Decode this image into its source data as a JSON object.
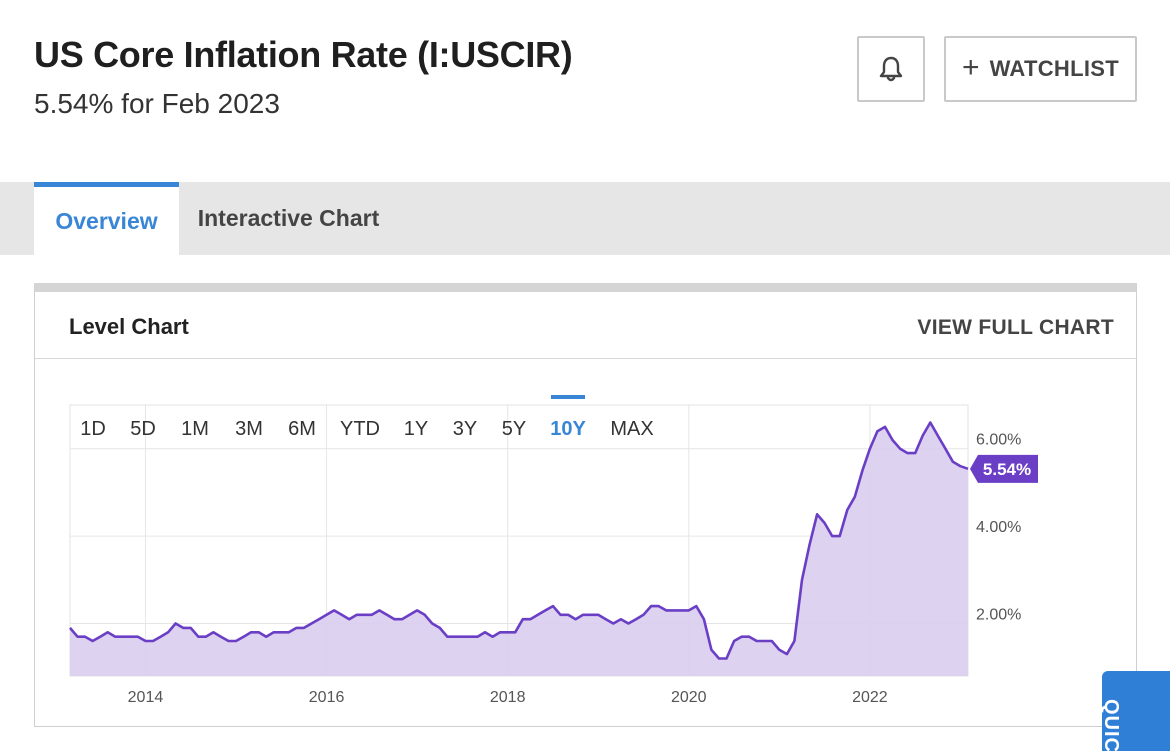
{
  "header": {
    "title": "US Core Inflation Rate (I:USCIR)",
    "subtitle": "5.54% for Feb 2023"
  },
  "actions": {
    "alert_icon": "bell-icon",
    "watchlist_icon": "plus-icon",
    "watchlist_label": "WATCHLIST"
  },
  "tabs": [
    {
      "label": "Overview",
      "active": true
    },
    {
      "label": "Interactive Chart",
      "active": false
    }
  ],
  "card": {
    "title": "Level Chart",
    "link_label": "VIEW FULL CHART"
  },
  "range_buttons": [
    {
      "label": "1D",
      "active": false
    },
    {
      "label": "5D",
      "active": false
    },
    {
      "label": "1M",
      "active": false
    },
    {
      "label": "3M",
      "active": false
    },
    {
      "label": "6M",
      "active": false
    },
    {
      "label": "YTD",
      "active": false
    },
    {
      "label": "1Y",
      "active": false
    },
    {
      "label": "3Y",
      "active": false
    },
    {
      "label": "5Y",
      "active": false
    },
    {
      "label": "10Y",
      "active": true
    },
    {
      "label": "MAX",
      "active": false
    }
  ],
  "colors": {
    "accent": "#3a86d6",
    "line": "#6a3fc6",
    "fill": "#d9cdee",
    "badge": "#6a3fc6"
  },
  "chart_data": {
    "type": "area",
    "title": "",
    "xlabel": "",
    "ylabel": "",
    "x_ticks": [
      "2014",
      "2016",
      "2018",
      "2020",
      "2022"
    ],
    "y_ticks": [
      "2.00%",
      "4.00%",
      "6.00%"
    ],
    "ylim": [
      0.8,
      7.0
    ],
    "grid": true,
    "last_value_label": "5.54%",
    "series": [
      {
        "points": [
          [
            "2013-03",
            1.9
          ],
          [
            "2013-04",
            1.7
          ],
          [
            "2013-05",
            1.7
          ],
          [
            "2013-06",
            1.6
          ],
          [
            "2013-07",
            1.7
          ],
          [
            "2013-08",
            1.8
          ],
          [
            "2013-09",
            1.7
          ],
          [
            "2013-10",
            1.7
          ],
          [
            "2013-11",
            1.7
          ],
          [
            "2013-12",
            1.7
          ],
          [
            "2014-01",
            1.6
          ],
          [
            "2014-02",
            1.6
          ],
          [
            "2014-03",
            1.7
          ],
          [
            "2014-04",
            1.8
          ],
          [
            "2014-05",
            2.0
          ],
          [
            "2014-06",
            1.9
          ],
          [
            "2014-07",
            1.9
          ],
          [
            "2014-08",
            1.7
          ],
          [
            "2014-09",
            1.7
          ],
          [
            "2014-10",
            1.8
          ],
          [
            "2014-11",
            1.7
          ],
          [
            "2014-12",
            1.6
          ],
          [
            "2015-01",
            1.6
          ],
          [
            "2015-02",
            1.7
          ],
          [
            "2015-03",
            1.8
          ],
          [
            "2015-04",
            1.8
          ],
          [
            "2015-05",
            1.7
          ],
          [
            "2015-06",
            1.8
          ],
          [
            "2015-07",
            1.8
          ],
          [
            "2015-08",
            1.8
          ],
          [
            "2015-09",
            1.9
          ],
          [
            "2015-10",
            1.9
          ],
          [
            "2015-11",
            2.0
          ],
          [
            "2015-12",
            2.1
          ],
          [
            "2016-01",
            2.2
          ],
          [
            "2016-02",
            2.3
          ],
          [
            "2016-03",
            2.2
          ],
          [
            "2016-04",
            2.1
          ],
          [
            "2016-05",
            2.2
          ],
          [
            "2016-06",
            2.2
          ],
          [
            "2016-07",
            2.2
          ],
          [
            "2016-08",
            2.3
          ],
          [
            "2016-09",
            2.2
          ],
          [
            "2016-10",
            2.1
          ],
          [
            "2016-11",
            2.1
          ],
          [
            "2016-12",
            2.2
          ],
          [
            "2017-01",
            2.3
          ],
          [
            "2017-02",
            2.2
          ],
          [
            "2017-03",
            2.0
          ],
          [
            "2017-04",
            1.9
          ],
          [
            "2017-05",
            1.7
          ],
          [
            "2017-06",
            1.7
          ],
          [
            "2017-07",
            1.7
          ],
          [
            "2017-08",
            1.7
          ],
          [
            "2017-09",
            1.7
          ],
          [
            "2017-10",
            1.8
          ],
          [
            "2017-11",
            1.7
          ],
          [
            "2017-12",
            1.8
          ],
          [
            "2018-01",
            1.8
          ],
          [
            "2018-02",
            1.8
          ],
          [
            "2018-03",
            2.1
          ],
          [
            "2018-04",
            2.1
          ],
          [
            "2018-05",
            2.2
          ],
          [
            "2018-06",
            2.3
          ],
          [
            "2018-07",
            2.4
          ],
          [
            "2018-08",
            2.2
          ],
          [
            "2018-09",
            2.2
          ],
          [
            "2018-10",
            2.1
          ],
          [
            "2018-11",
            2.2
          ],
          [
            "2018-12",
            2.2
          ],
          [
            "2019-01",
            2.2
          ],
          [
            "2019-02",
            2.1
          ],
          [
            "2019-03",
            2.0
          ],
          [
            "2019-04",
            2.1
          ],
          [
            "2019-05",
            2.0
          ],
          [
            "2019-06",
            2.1
          ],
          [
            "2019-07",
            2.2
          ],
          [
            "2019-08",
            2.4
          ],
          [
            "2019-09",
            2.4
          ],
          [
            "2019-10",
            2.3
          ],
          [
            "2019-11",
            2.3
          ],
          [
            "2019-12",
            2.3
          ],
          [
            "2020-01",
            2.3
          ],
          [
            "2020-02",
            2.4
          ],
          [
            "2020-03",
            2.1
          ],
          [
            "2020-04",
            1.4
          ],
          [
            "2020-05",
            1.2
          ],
          [
            "2020-06",
            1.2
          ],
          [
            "2020-07",
            1.6
          ],
          [
            "2020-08",
            1.7
          ],
          [
            "2020-09",
            1.7
          ],
          [
            "2020-10",
            1.6
          ],
          [
            "2020-11",
            1.6
          ],
          [
            "2020-12",
            1.6
          ],
          [
            "2021-01",
            1.4
          ],
          [
            "2021-02",
            1.3
          ],
          [
            "2021-03",
            1.6
          ],
          [
            "2021-04",
            3.0
          ],
          [
            "2021-05",
            3.8
          ],
          [
            "2021-06",
            4.5
          ],
          [
            "2021-07",
            4.3
          ],
          [
            "2021-08",
            4.0
          ],
          [
            "2021-09",
            4.0
          ],
          [
            "2021-10",
            4.6
          ],
          [
            "2021-11",
            4.9
          ],
          [
            "2021-12",
            5.5
          ],
          [
            "2022-01",
            6.0
          ],
          [
            "2022-02",
            6.4
          ],
          [
            "2022-03",
            6.5
          ],
          [
            "2022-04",
            6.2
          ],
          [
            "2022-05",
            6.0
          ],
          [
            "2022-06",
            5.9
          ],
          [
            "2022-07",
            5.9
          ],
          [
            "2022-08",
            6.3
          ],
          [
            "2022-09",
            6.6
          ],
          [
            "2022-10",
            6.3
          ],
          [
            "2022-11",
            6.0
          ],
          [
            "2022-12",
            5.7
          ],
          [
            "2023-01",
            5.6
          ],
          [
            "2023-02",
            5.54
          ]
        ]
      }
    ]
  }
}
